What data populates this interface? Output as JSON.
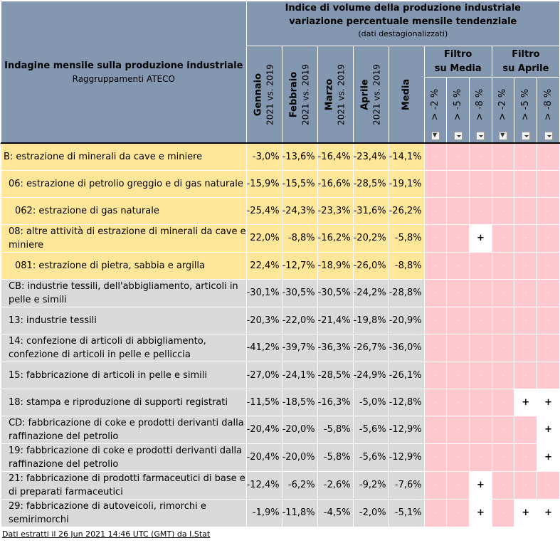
{
  "header": {
    "left_title": "Indagine mensile sulla produzione industriale",
    "left_subtitle": "Raggruppamenti ATECO",
    "top_title_line1": "Indice di volume della produzione industriale",
    "top_title_line2": "variazione percentuale mensile tendenziale",
    "top_title_line3": "(dati destagionalizzati)",
    "months": [
      {
        "name": "Gennaio",
        "period": "2021 vs. 2019"
      },
      {
        "name": "Febbraio",
        "period": "2021 vs. 2019"
      },
      {
        "name": "Marzo",
        "period": "2021 vs. 2019"
      },
      {
        "name": "Aprile",
        "period": "2021 vs. 2019"
      }
    ],
    "media": "Media",
    "filter_media": "Filtro su Media",
    "filter_media_l1": "Filtro",
    "filter_media_l2": "su Media",
    "filter_aprile_l1": "Filtro",
    "filter_aprile_l2": "su Aprile",
    "thresholds": [
      "> -2 %",
      "> -5 %",
      "> -8 %",
      "> -2 %",
      "> -5 %",
      "> -8 %"
    ]
  },
  "rows": [
    {
      "label": "B: estrazione di minerali da cave e miniere",
      "values": [
        "-3,0%",
        "-13,6%",
        "-16,4%",
        "-23,4%",
        "-14,1%"
      ],
      "flags": [
        "-",
        "-",
        "-",
        "-",
        "-",
        "-"
      ]
    },
    {
      "label": "06: estrazione di petrolio greggio e di gas naturale",
      "values": [
        "-15,9%",
        "-15,5%",
        "-16,6%",
        "-28,5%",
        "-19,1%"
      ],
      "flags": [
        "-",
        "-",
        "-",
        "-",
        "-",
        "-"
      ]
    },
    {
      "label": "062: estrazione di gas naturale",
      "values": [
        "-25,4%",
        "-24,3%",
        "-23,3%",
        "-31,6%",
        "-26,2%"
      ],
      "flags": [
        "-",
        "-",
        "-",
        "-",
        "-",
        "-"
      ]
    },
    {
      "label": "08: altre attività di estrazione di minerali da cave e miniere",
      "values": [
        "22,0%",
        "-8,8%",
        "-16,2%",
        "-20,2%",
        "-5,8%"
      ],
      "flags": [
        "-",
        "-",
        "+",
        "-",
        "-",
        "-"
      ]
    },
    {
      "label": "081: estrazione di pietra, sabbia e argilla",
      "values": [
        "22,4%",
        "-12,7%",
        "-18,9%",
        "-26,0%",
        "-8,8%"
      ],
      "flags": [
        "-",
        "-",
        "-",
        "-",
        "-",
        "-"
      ]
    },
    {
      "label": "CB: industrie tessili, dell'abbigliamento, articoli in pelle e simili",
      "values": [
        "-30,1%",
        "-30,5%",
        "-30,5%",
        "-24,2%",
        "-28,8%"
      ],
      "flags": [
        "-",
        "-",
        "-",
        "-",
        "-",
        "-"
      ]
    },
    {
      "label": "13: industrie tessili",
      "values": [
        "-20,3%",
        "-22,0%",
        "-21,4%",
        "-19,8%",
        "-20,9%"
      ],
      "flags": [
        "-",
        "-",
        "-",
        "-",
        "-",
        "-"
      ]
    },
    {
      "label": "14: confezione di articoli di abbigliamento, confezione di articoli in pelle e pelliccia",
      "values": [
        "-41,2%",
        "-39,7%",
        "-36,3%",
        "-26,7%",
        "-36,0%"
      ],
      "flags": [
        "-",
        "-",
        "-",
        "-",
        "-",
        "-"
      ]
    },
    {
      "label": "15: fabbricazione di articoli in pelle e simili",
      "values": [
        "-27,0%",
        "-24,1%",
        "-28,5%",
        "-24,9%",
        "-26,1%"
      ],
      "flags": [
        "-",
        "-",
        "-",
        "-",
        "-",
        "-"
      ]
    },
    {
      "label": "18: stampa e riproduzione di supporti registrati",
      "values": [
        "-11,5%",
        "-18,5%",
        "-16,3%",
        "-5,0%",
        "-12,8%"
      ],
      "flags": [
        "-",
        "-",
        "-",
        "-",
        "+",
        "+"
      ]
    },
    {
      "label": "CD: fabbricazione di coke e prodotti derivanti dalla raffinazione del petrolio",
      "values": [
        "-20,4%",
        "-20,0%",
        "-5,8%",
        "-5,6%",
        "-12,9%"
      ],
      "flags": [
        "-",
        "-",
        "-",
        "-",
        "-",
        "+"
      ]
    },
    {
      "label": "19: fabbricazione di coke e prodotti derivanti dalla raffinazione del petrolio",
      "values": [
        "-20,4%",
        "-20,0%",
        "-5,8%",
        "-5,6%",
        "-12,9%"
      ],
      "flags": [
        "-",
        "-",
        "-",
        "-",
        "-",
        "+"
      ]
    },
    {
      "label": "21: fabbricazione di prodotti farmaceutici di base e di preparati farmaceutici",
      "values": [
        "-12,4%",
        "-6,2%",
        "-2,6%",
        "-9,2%",
        "-7,6%"
      ],
      "flags": [
        "-",
        "-",
        "+",
        "-",
        "-",
        "-"
      ]
    },
    {
      "label": "29: fabbricazione di autoveicoli, rimorchi e semirimorchi",
      "values": [
        "-1,9%",
        "-11,8%",
        "-4,5%",
        "-2,0%",
        "-5,1%"
      ],
      "flags": [
        "-",
        "-",
        "+",
        "-",
        "+",
        "+"
      ]
    }
  ],
  "footer": "Dati estratti il 26 Jun 2021 14:46 UTC (GMT) da I.Stat",
  "colors": {
    "header_bg": "#8497b0",
    "yellow_row": "#ffe699",
    "grey_row": "#d9d9d9",
    "pink_flag": "#ffc7ce",
    "white_flag": "#ffffff"
  }
}
